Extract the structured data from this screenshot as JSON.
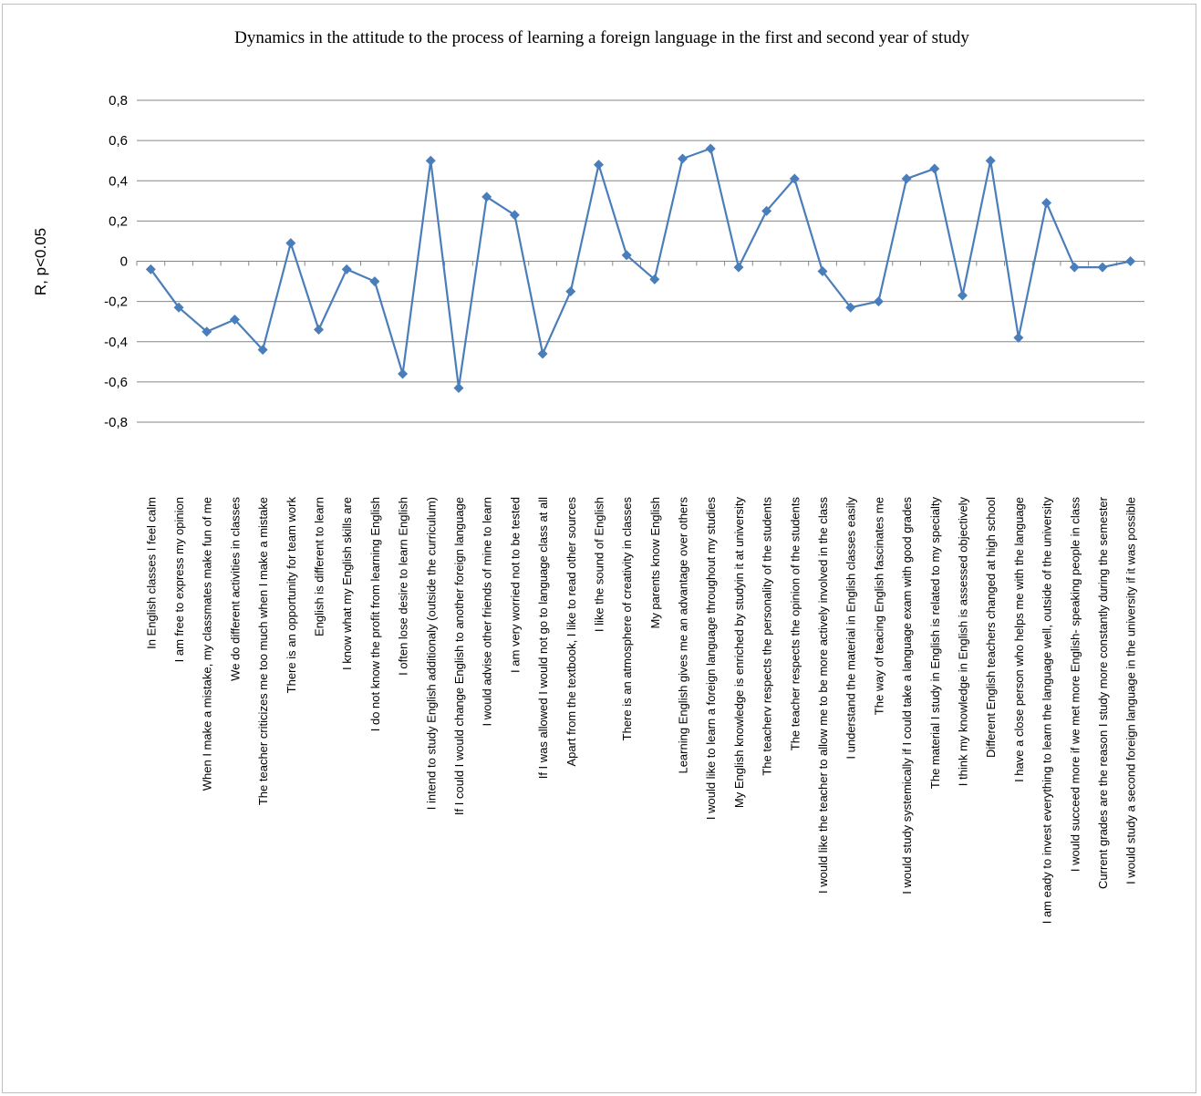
{
  "chart_data": {
    "type": "line",
    "title": "Dynamics in the attitude to the process of learning a foreign language in the first and second year of study",
    "xlabel": "",
    "ylabel": "R, p<0.05",
    "ylim": [
      -0.8,
      0.8
    ],
    "yticks": [
      "0,8",
      "0,6",
      "0,4",
      "0,2",
      "0",
      "-0,2",
      "-0,4",
      "-0,6",
      "-0,8"
    ],
    "grid": true,
    "legend": "none",
    "line_color": "#4a7ebb",
    "categories": [
      "In English classes I feel calm",
      "I am free to express my opinion",
      "When I make a mistake, my classmates make fun of me",
      "We do different activities in  classes",
      "The teacher criticizes me too much when I make a mistake",
      "There is an opportunity for team work",
      "English is different to learn",
      "I know what my English skills are",
      "I do not know the profit from learning English",
      "I often lose desire to learn English",
      "I intend to study English additionaly (outside the curriculum)",
      "If I could I would change English to another foreign language",
      "I would advise other friends of mine to learn",
      "I am very worried not to be tested",
      "If I was allowed I would not go to language class at all",
      "Apart from the textbook, I like to read other sources",
      "I like the sound of English",
      "There is an atmosphere of creativity in classes",
      "My parents know English",
      "Learning  English gives me an advantage over others",
      "I would like to learn a foreign language throughout my studies",
      "My English knowledge is enriched by studyin it at university",
      "The teacherv respects the personality of the students",
      "The teacher respects the opinion of the students",
      "I would like the teacher to allow me to be more actively involved in the class",
      "I understand the material in English classes easily",
      "The way of teacing English fascinates me",
      "I would study systemically if I could take a language exam with good grades",
      "The material I study in English is related to my specialty",
      "I think my knowledge in English is assessed objectively",
      "Different English teachers changed at high school",
      "I have a close person who helps me with the language",
      "I am eady to invest everything to learn the language well, outside of the university",
      "I would succeed more if we met more English- speaking people in class",
      "Current grades are the reason I study more constantly during the semester",
      "I would study a second foreign language in the university if it was possible"
    ],
    "values": [
      -0.04,
      -0.23,
      -0.35,
      -0.29,
      -0.44,
      0.09,
      -0.34,
      -0.04,
      -0.1,
      -0.56,
      0.5,
      -0.63,
      0.32,
      0.23,
      -0.46,
      -0.15,
      0.48,
      0.03,
      -0.09,
      0.51,
      0.56,
      -0.03,
      0.25,
      0.41,
      -0.05,
      -0.23,
      -0.2,
      0.41,
      0.46,
      -0.17,
      0.5,
      -0.38,
      0.29,
      -0.03,
      -0.03,
      0.0
    ]
  }
}
